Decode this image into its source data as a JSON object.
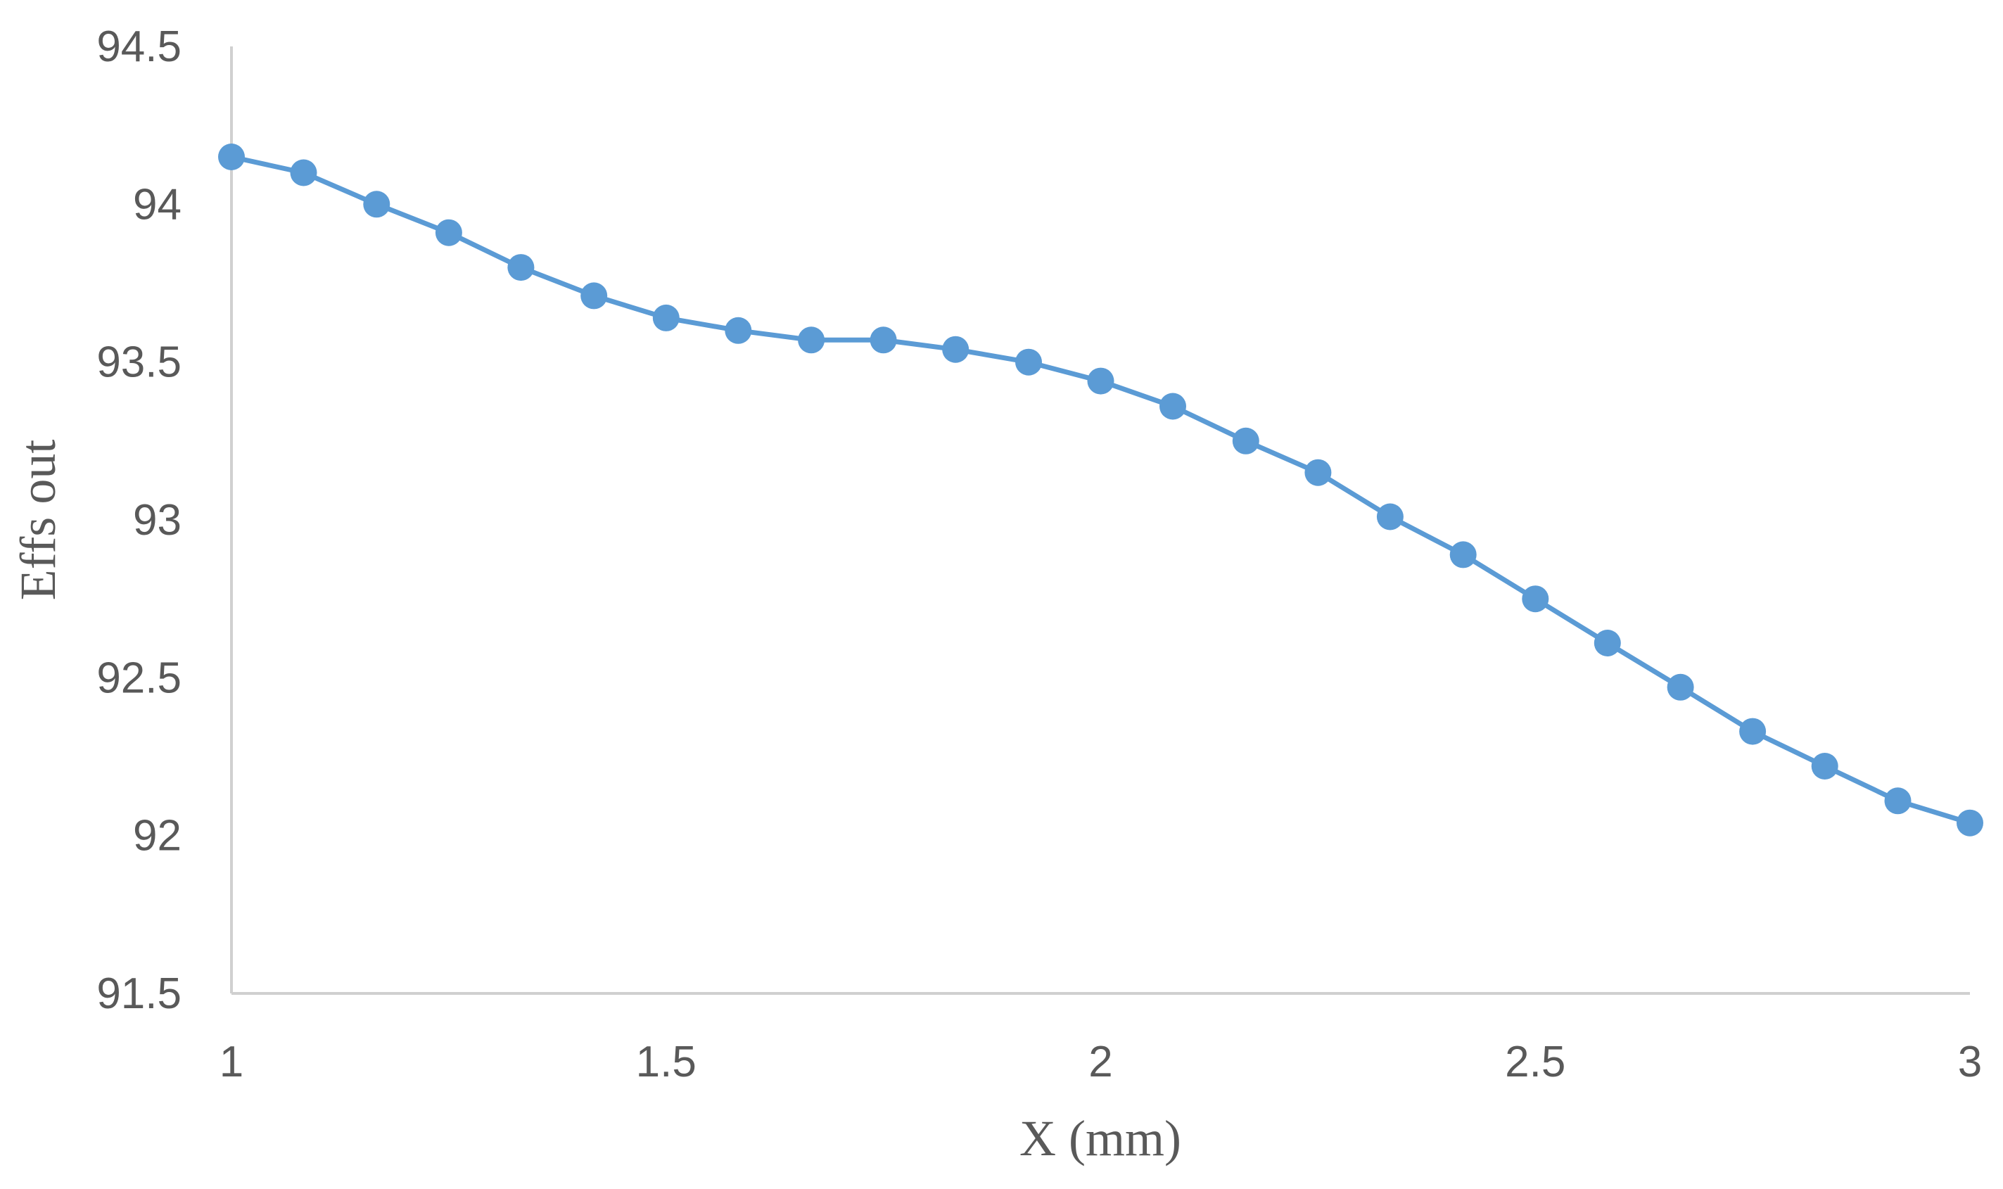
{
  "chart_data": {
    "type": "line",
    "title": "",
    "xlabel": "X (mm)",
    "ylabel": "Effs out",
    "xlim": [
      1,
      3
    ],
    "ylim": [
      91.5,
      94.5
    ],
    "xticks": [
      1,
      1.5,
      2,
      2.5,
      3
    ],
    "xtick_labels": [
      "1",
      "1.5",
      "2",
      "2.5",
      "3"
    ],
    "yticks": [
      91.5,
      92,
      92.5,
      93,
      93.5,
      94,
      94.5
    ],
    "ytick_labels": [
      "91.5",
      "92",
      "92.5",
      "93",
      "93.5",
      "94",
      "94.5"
    ],
    "grid": false,
    "legend": "none",
    "color": "#5b9bd5",
    "series": [
      {
        "x": [
          1.0,
          1.083,
          1.167,
          1.25,
          1.333,
          1.417,
          1.5,
          1.583,
          1.667,
          1.75,
          1.833,
          1.917,
          2.0,
          2.083,
          2.167,
          2.25,
          2.333,
          2.417,
          2.5,
          2.583,
          2.667,
          2.75,
          2.833,
          2.917,
          3.0
        ],
        "values": [
          94.15,
          94.1,
          94.0,
          93.91,
          93.8,
          93.71,
          93.64,
          93.6,
          93.57,
          93.57,
          93.54,
          93.5,
          93.44,
          93.36,
          93.25,
          93.15,
          93.01,
          92.89,
          92.75,
          92.61,
          92.47,
          92.33,
          92.22,
          92.11,
          92.04
        ]
      }
    ]
  }
}
